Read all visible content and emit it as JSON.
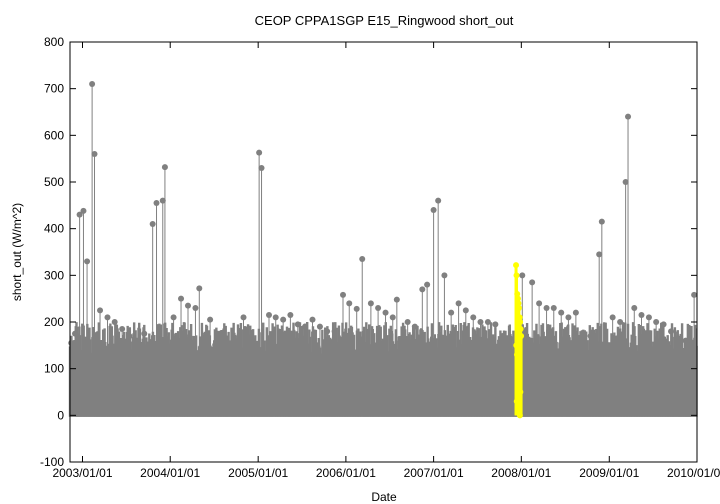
{
  "chart_data": {
    "type": "scatter",
    "title": "CEOP CPPA1SGP E15_Ringwood  short_out",
    "xlabel": "Date",
    "ylabel": "short_out (W/m^2)",
    "ylim": [
      -100,
      800
    ],
    "xlim": [
      "2003/01/01",
      "2010/01/01"
    ],
    "y_ticks": [
      -100,
      0,
      100,
      200,
      300,
      400,
      500,
      600,
      700,
      800
    ],
    "x_ticks": [
      "2003/01/01",
      "2004/01/01",
      "2005/01/01",
      "2006/01/01",
      "2007/01/01",
      "2008/01/01",
      "2009/01/01",
      "2010/01/01"
    ],
    "grid": false,
    "legend": "none",
    "x_start": "2002/11/10",
    "x_end": "2010/01/01",
    "colors": {
      "main": "#808080",
      "highlight": "#ffff00",
      "axis": "#000000"
    },
    "series": [
      {
        "color": "#808080",
        "points": [
          [
            "2002/11/15",
            155
          ],
          [
            "2002/12/01",
            175
          ],
          [
            "2002/12/20",
            430
          ],
          [
            "2003/01/05",
            438
          ],
          [
            "2003/01/20",
            330
          ],
          [
            "2003/02/10",
            710
          ],
          [
            "2003/02/20",
            560
          ],
          [
            "2003/03/15",
            225
          ],
          [
            "2003/04/15",
            210
          ],
          [
            "2003/05/15",
            200
          ],
          [
            "2003/06/15",
            185
          ],
          [
            "2003/07/15",
            170
          ],
          [
            "2003/08/15",
            160
          ],
          [
            "2003/09/15",
            175
          ],
          [
            "2003/10/20",
            410
          ],
          [
            "2003/11/05",
            455
          ],
          [
            "2003/12/01",
            460
          ],
          [
            "2003/12/10",
            532
          ],
          [
            "2004/01/15",
            210
          ],
          [
            "2004/02/15",
            250
          ],
          [
            "2004/03/15",
            235
          ],
          [
            "2004/04/15",
            230
          ],
          [
            "2004/05/01",
            272
          ],
          [
            "2004/06/15",
            205
          ],
          [
            "2004/07/15",
            175
          ],
          [
            "2004/08/15",
            125
          ],
          [
            "2004/09/15",
            150
          ],
          [
            "2004/10/15",
            170
          ],
          [
            "2004/11/01",
            210
          ],
          [
            "2005/01/05",
            563
          ],
          [
            "2005/01/15",
            530
          ],
          [
            "2005/02/15",
            215
          ],
          [
            "2005/03/15",
            210
          ],
          [
            "2005/04/15",
            205
          ],
          [
            "2005/05/15",
            215
          ],
          [
            "2005/06/15",
            195
          ],
          [
            "2005/07/15",
            190
          ],
          [
            "2005/08/15",
            205
          ],
          [
            "2005/09/15",
            190
          ],
          [
            "2005/10/15",
            180
          ],
          [
            "2005/11/15",
            180
          ],
          [
            "2005/12/20",
            258
          ],
          [
            "2006/01/15",
            240
          ],
          [
            "2006/02/15",
            228
          ],
          [
            "2006/03/10",
            335
          ],
          [
            "2006/04/15",
            240
          ],
          [
            "2006/05/15",
            230
          ],
          [
            "2006/06/15",
            220
          ],
          [
            "2006/07/15",
            210
          ],
          [
            "2006/08/01",
            248
          ],
          [
            "2006/09/15",
            200
          ],
          [
            "2006/10/15",
            190
          ],
          [
            "2006/11/15",
            270
          ],
          [
            "2006/12/05",
            280
          ],
          [
            "2007/01/01",
            440
          ],
          [
            "2007/01/20",
            460
          ],
          [
            "2007/02/15",
            300
          ],
          [
            "2007/03/15",
            220
          ],
          [
            "2007/04/15",
            240
          ],
          [
            "2007/05/15",
            225
          ],
          [
            "2007/06/15",
            210
          ],
          [
            "2007/07/15",
            200
          ],
          [
            "2007/08/15",
            200
          ],
          [
            "2007/09/15",
            195
          ],
          [
            "2007/10/15",
            170
          ],
          [
            "2007/11/15",
            165
          ],
          [
            "2008/01/05",
            300
          ],
          [
            "2008/02/15",
            285
          ],
          [
            "2008/03/15",
            240
          ],
          [
            "2008/04/15",
            230
          ],
          [
            "2008/05/15",
            230
          ],
          [
            "2008/06/15",
            220
          ],
          [
            "2008/07/15",
            210
          ],
          [
            "2008/08/15",
            220
          ],
          [
            "2008/09/15",
            175
          ],
          [
            "2008/10/15",
            170
          ],
          [
            "2008/11/20",
            345
          ],
          [
            "2008/12/01",
            415
          ],
          [
            "2009/01/15",
            210
          ],
          [
            "2009/02/15",
            200
          ],
          [
            "2009/03/10",
            500
          ],
          [
            "2009/03/20",
            640
          ],
          [
            "2009/04/15",
            230
          ],
          [
            "2009/05/15",
            215
          ],
          [
            "2009/06/15",
            210
          ],
          [
            "2009/07/15",
            200
          ],
          [
            "2009/08/15",
            195
          ],
          [
            "2009/09/15",
            180
          ],
          [
            "2009/10/15",
            165
          ],
          [
            "2009/11/15",
            160
          ],
          [
            "2009/12/20",
            258
          ]
        ]
      },
      {
        "color": "#ffff00",
        "points": [
          [
            "2007/12/10",
            322
          ],
          [
            "2007/12/12",
            300
          ],
          [
            "2007/12/15",
            260
          ],
          [
            "2007/12/18",
            250
          ],
          [
            "2007/12/20",
            240
          ],
          [
            "2007/12/22",
            230
          ],
          [
            "2007/12/25",
            210
          ],
          [
            "2007/12/27",
            200
          ],
          [
            "2007/12/29",
            185
          ],
          [
            "2007/12/31",
            170
          ],
          [
            "2007/12/11",
            150
          ],
          [
            "2007/12/14",
            130
          ],
          [
            "2007/12/17",
            110
          ],
          [
            "2007/12/21",
            90
          ],
          [
            "2007/12/24",
            70
          ],
          [
            "2007/12/28",
            50
          ],
          [
            "2007/12/13",
            30
          ],
          [
            "2007/12/19",
            10
          ],
          [
            "2007/12/26",
            0
          ]
        ]
      }
    ]
  }
}
